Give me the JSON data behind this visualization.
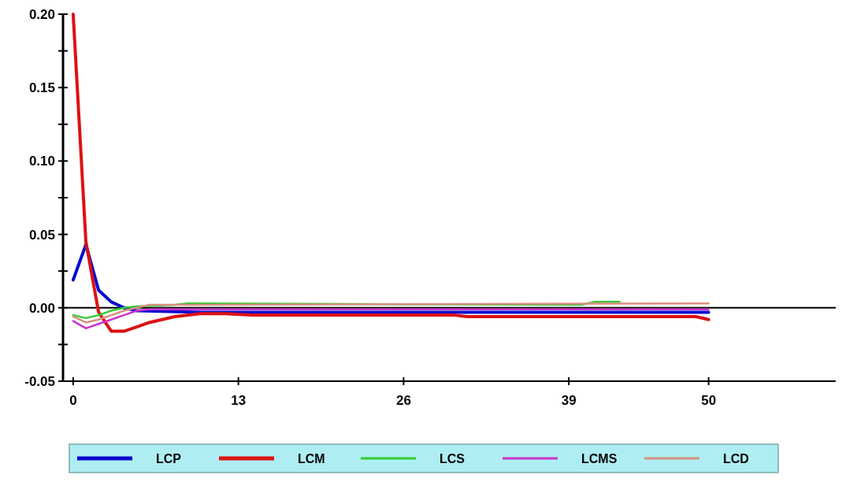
{
  "chart_data": {
    "type": "line",
    "xlim": [
      -0.8,
      60
    ],
    "xticks": [
      0,
      13,
      26,
      39,
      50
    ],
    "ylim": [
      -0.05,
      0.2
    ],
    "yticks": [
      {
        "value": -0.05,
        "label": "-0.05"
      },
      {
        "value": -0.025,
        "label": null
      },
      {
        "value": 0,
        "label": "0.00"
      },
      {
        "value": 0.025,
        "label": null
      },
      {
        "value": 0.05,
        "label": "0.05"
      },
      {
        "value": 0.075,
        "label": null
      },
      {
        "value": 0.1,
        "label": "0.10"
      },
      {
        "value": 0.125,
        "label": null
      },
      {
        "value": 0.15,
        "label": "0.15"
      },
      {
        "value": 0.175,
        "label": null
      },
      {
        "value": 0.2,
        "label": "0.20"
      }
    ],
    "grid": false,
    "legend": "bottom",
    "marker": "none",
    "line_style": "solid",
    "ref_lines": [
      {
        "axis": "y",
        "value": 0,
        "color": "#000000"
      }
    ],
    "series": [
      {
        "name": "LCP",
        "color": "#0a0ad0",
        "x": [
          0,
          1,
          2,
          3,
          4,
          5,
          10,
          20,
          30,
          40,
          50
        ],
        "values": [
          0.019,
          0.043,
          0.012,
          0.004,
          0.0,
          -0.002,
          -0.003,
          -0.003,
          -0.003,
          -0.003,
          -0.003
        ]
      },
      {
        "name": "LCM",
        "color": "#dd1111",
        "x": [
          0,
          1,
          2,
          3,
          4,
          5,
          6,
          7,
          8,
          10,
          12,
          14,
          30,
          31,
          49,
          50
        ],
        "values": [
          0.2,
          0.045,
          -0.003,
          -0.016,
          -0.016,
          -0.013,
          -0.01,
          -0.008,
          -0.006,
          -0.004,
          -0.004,
          -0.005,
          -0.005,
          -0.006,
          -0.006,
          -0.008
        ]
      },
      {
        "name": "LCS",
        "color": "#33cc33",
        "x": [
          0,
          1,
          2,
          3,
          4,
          5,
          8,
          9,
          40,
          41,
          43
        ],
        "values": [
          -0.005,
          -0.007,
          -0.005,
          -0.002,
          0.0,
          0.001,
          0.002,
          0.003,
          0.002,
          0.004,
          0.004
        ]
      },
      {
        "name": "LCMS",
        "color": "#cc33cc",
        "x": [
          0,
          1,
          2,
          3,
          4,
          5,
          6,
          8,
          50
        ],
        "values": [
          -0.009,
          -0.014,
          -0.011,
          -0.008,
          -0.005,
          -0.002,
          -0.001,
          -0.001,
          -0.001
        ]
      },
      {
        "name": "LCD",
        "color": "#d89080",
        "x": [
          0,
          1,
          2,
          3,
          4,
          5,
          6,
          10,
          50
        ],
        "values": [
          -0.006,
          -0.01,
          -0.008,
          -0.005,
          -0.002,
          0.0,
          0.002,
          0.002,
          0.003
        ]
      }
    ]
  }
}
